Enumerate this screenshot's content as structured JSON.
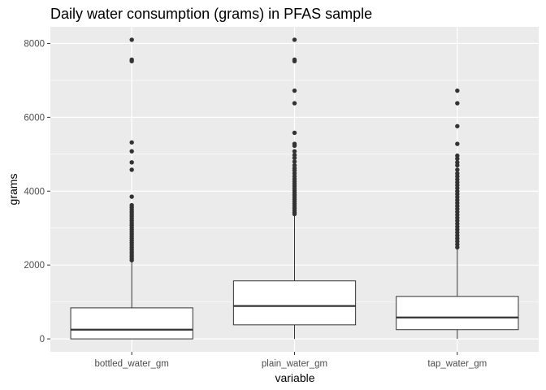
{
  "chart_data": {
    "type": "boxplot",
    "title": "Daily water consumption (grams) in PFAS sample",
    "xlabel": "variable",
    "ylabel": "grams",
    "ylim": [
      -350,
      8450
    ],
    "yticks": [
      0,
      2000,
      4000,
      6000,
      8000
    ],
    "grid": true,
    "legend": "none",
    "categories": [
      "bottled_water_gm",
      "plain_water_gm",
      "tap_water_gm"
    ],
    "boxes": [
      {
        "category": "bottled_water_gm",
        "min": 0,
        "q1": 0,
        "median": 250,
        "q3": 840,
        "whisker_high": 2090,
        "outliers": [
          8100,
          7560,
          7520,
          5320,
          5080,
          4780,
          4580,
          3850,
          3620,
          3560,
          3500,
          3440,
          3380,
          3320,
          3260,
          3200,
          3140,
          3080,
          3020,
          2960,
          2900,
          2840,
          2780,
          2720,
          2660,
          2600,
          2540,
          2480,
          2420,
          2360,
          2300,
          2240,
          2180,
          2130
        ]
      },
      {
        "category": "plain_water_gm",
        "min": 0,
        "q1": 380,
        "median": 890,
        "q3": 1570,
        "whisker_high": 3340,
        "outliers": [
          8100,
          7560,
          7520,
          6720,
          6380,
          5580,
          5280,
          5230,
          5080,
          4980,
          4900,
          4800,
          4700,
          4620,
          4560,
          4480,
          4400,
          4330,
          4260,
          4200,
          4140,
          4080,
          4020,
          3960,
          3900,
          3840,
          3780,
          3720,
          3660,
          3600,
          3540,
          3480,
          3420,
          3380
        ]
      },
      {
        "category": "tap_water_gm",
        "min": 0,
        "q1": 250,
        "median": 580,
        "q3": 1150,
        "whisker_high": 2440,
        "outliers": [
          6720,
          6380,
          5760,
          5280,
          4960,
          4880,
          4780,
          4700,
          4580,
          4480,
          4400,
          4320,
          4240,
          4160,
          4080,
          4000,
          3920,
          3840,
          3760,
          3680,
          3600,
          3520,
          3440,
          3360,
          3280,
          3200,
          3120,
          3040,
          2960,
          2880,
          2800,
          2720,
          2640,
          2560,
          2480
        ]
      }
    ],
    "colors": {
      "panel": "#ebebeb",
      "grid": "#ffffff",
      "box_fill": "#ffffff",
      "box_line": "#333333",
      "outlier": "#333333"
    }
  }
}
